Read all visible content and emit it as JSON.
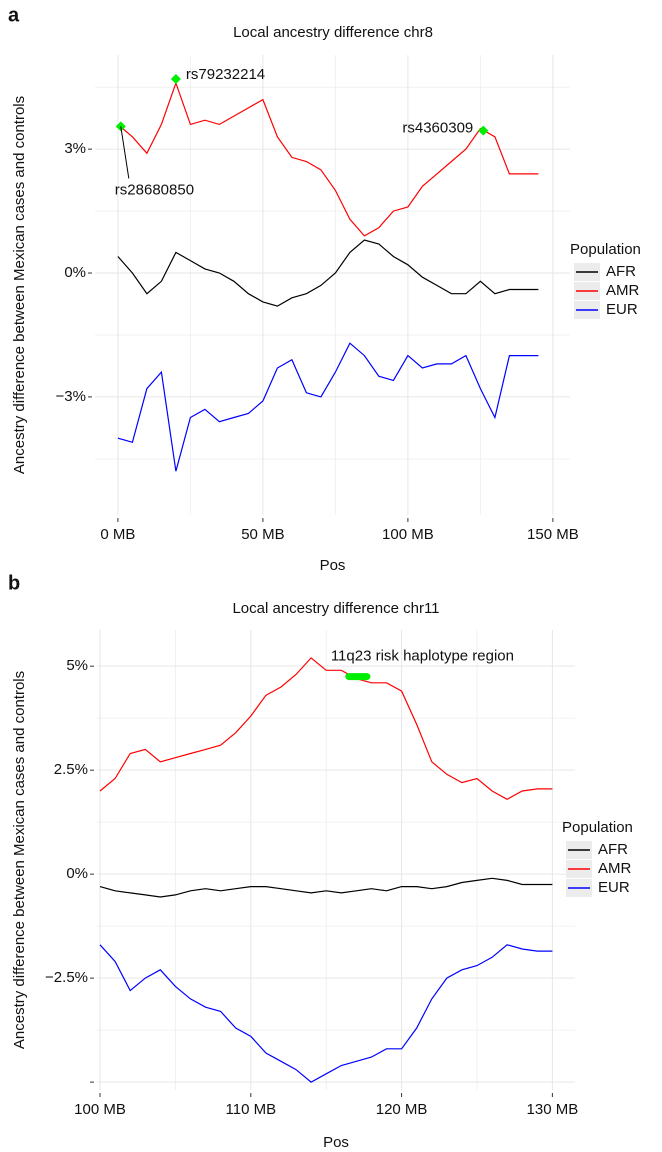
{
  "chart_data": [
    {
      "type": "line",
      "panel_label": "a",
      "title": "Local ancestry difference chr8",
      "x_label": "Pos",
      "y_label": "Ancestry difference between Mexican cases and controls",
      "legend_title": "Population",
      "legend_position": "right",
      "grid": true,
      "xlim": [
        -7.9,
        155.9
      ],
      "ylim": [
        -5.86,
        5.28
      ],
      "xticks": [
        {
          "value": 0,
          "label": "0 MB"
        },
        {
          "value": 50,
          "label": "50 MB"
        },
        {
          "value": 100,
          "label": "100 MB"
        },
        {
          "value": 150,
          "label": "150 MB"
        }
      ],
      "minor_xticks": [
        25,
        75,
        125
      ],
      "yticks": [
        {
          "value": 3,
          "label": "3%"
        },
        {
          "value": 0,
          "label": "0%"
        },
        {
          "value": -3,
          "label": "−3%"
        }
      ],
      "minor_yticks": [
        4.5,
        1.5,
        -1.5,
        -4.5
      ],
      "x": [
        0,
        5,
        10,
        15,
        20,
        25,
        30,
        35,
        40,
        45,
        50,
        55,
        60,
        65,
        70,
        75,
        80,
        85,
        90,
        95,
        100,
        105,
        110,
        115,
        120,
        125,
        130,
        135,
        140,
        145
      ],
      "series": [
        {
          "name": "AFR",
          "color": "#000000",
          "values": [
            0.4,
            0.0,
            -0.5,
            -0.2,
            0.5,
            0.3,
            0.1,
            0.0,
            -0.2,
            -0.5,
            -0.7,
            -0.8,
            -0.6,
            -0.5,
            -0.3,
            0.0,
            0.5,
            0.8,
            0.7,
            0.4,
            0.2,
            -0.1,
            -0.3,
            -0.5,
            -0.5,
            -0.2,
            -0.5,
            -0.4,
            -0.4,
            -0.4
          ]
        },
        {
          "name": "AMR",
          "color": "#ff0000",
          "values": [
            3.6,
            3.3,
            2.9,
            3.6,
            4.6,
            3.6,
            3.7,
            3.6,
            3.8,
            4.0,
            4.2,
            3.3,
            2.8,
            2.7,
            2.5,
            2.0,
            1.3,
            0.9,
            1.1,
            1.5,
            1.6,
            2.1,
            2.4,
            2.7,
            3.0,
            3.5,
            3.3,
            2.4,
            2.4,
            2.4
          ]
        },
        {
          "name": "EUR",
          "color": "#0000ff",
          "values": [
            -4.0,
            -4.1,
            -2.8,
            -2.4,
            -4.8,
            -3.5,
            -3.3,
            -3.6,
            -3.5,
            -3.4,
            -3.1,
            -2.3,
            -2.1,
            -2.9,
            -3.0,
            -2.4,
            -1.7,
            -2.0,
            -2.5,
            -2.6,
            -2.0,
            -2.3,
            -2.2,
            -2.2,
            -2.0,
            -2.8,
            -3.5,
            -2.0,
            -2.0,
            -2.0
          ]
        }
      ],
      "annotations": [
        {
          "label": "rs79232214",
          "x": 20,
          "y": 4.7,
          "color": "#00ee00"
        },
        {
          "label": "rs28680850",
          "x": 1,
          "y": 3.55,
          "color": "#00ee00"
        },
        {
          "label": "rs4360309",
          "x": 126,
          "y": 3.45,
          "color": "#00ee00"
        }
      ]
    },
    {
      "type": "line",
      "panel_label": "b",
      "title": "Local ancestry difference chr11",
      "x_label": "Pos",
      "y_label": "Ancestry difference between Mexican cases and controls",
      "legend_title": "Population",
      "legend_position": "right",
      "grid": true,
      "xlim": [
        99.8,
        131.5
      ],
      "ylim": [
        -5.19,
        5.87
      ],
      "xticks": [
        {
          "value": 100,
          "label": "100 MB"
        },
        {
          "value": 110,
          "label": "110 MB"
        },
        {
          "value": 120,
          "label": "120 MB"
        },
        {
          "value": 130,
          "label": "130 MB"
        }
      ],
      "minor_xticks": [
        105,
        115,
        125
      ],
      "yticks": [
        {
          "value": 5,
          "label": "5%"
        },
        {
          "value": 2.5,
          "label": "2.5%"
        },
        {
          "value": 0,
          "label": "0%"
        },
        {
          "value": -2.5,
          "label": "−2.5%"
        },
        {
          "value": -5,
          "label": null
        }
      ],
      "minor_yticks": [
        3.75,
        1.25,
        -1.25,
        -3.75
      ],
      "x": [
        100,
        101,
        102,
        103,
        104,
        105,
        106,
        107,
        108,
        109,
        110,
        111,
        112,
        113,
        114,
        115,
        116,
        117,
        118,
        119,
        120,
        121,
        122,
        123,
        124,
        125,
        126,
        127,
        128,
        129,
        130
      ],
      "series": [
        {
          "name": "AFR",
          "color": "#000000",
          "values": [
            -0.3,
            -0.4,
            -0.45,
            -0.5,
            -0.55,
            -0.5,
            -0.4,
            -0.35,
            -0.4,
            -0.35,
            -0.3,
            -0.3,
            -0.35,
            -0.4,
            -0.45,
            -0.4,
            -0.45,
            -0.4,
            -0.35,
            -0.4,
            -0.3,
            -0.3,
            -0.35,
            -0.3,
            -0.2,
            -0.15,
            -0.1,
            -0.15,
            -0.25,
            -0.25,
            -0.25
          ]
        },
        {
          "name": "AMR",
          "color": "#ff0000",
          "values": [
            2.0,
            2.3,
            2.9,
            3.0,
            2.7,
            2.8,
            2.9,
            3.0,
            3.1,
            3.4,
            3.8,
            4.3,
            4.5,
            4.8,
            5.2,
            4.9,
            4.9,
            4.7,
            4.6,
            4.6,
            4.4,
            3.6,
            2.7,
            2.4,
            2.2,
            2.3,
            2.0,
            1.8,
            2.0,
            2.05,
            2.05
          ]
        },
        {
          "name": "EUR",
          "color": "#0000ff",
          "values": [
            -1.7,
            -2.1,
            -2.8,
            -2.5,
            -2.3,
            -2.7,
            -3.0,
            -3.2,
            -3.3,
            -3.7,
            -3.9,
            -4.3,
            -4.5,
            -4.7,
            -5.0,
            -4.8,
            -4.6,
            -4.5,
            -4.4,
            -4.2,
            -4.2,
            -3.7,
            -3.0,
            -2.5,
            -2.3,
            -2.2,
            -2.0,
            -1.7,
            -1.8,
            -1.85,
            -1.85
          ]
        }
      ],
      "annotations": [
        {
          "label": "11q23 risk haplotype region",
          "x": [
            116.5,
            117.7
          ],
          "y": 4.75,
          "color": "#00ee00"
        }
      ]
    }
  ]
}
